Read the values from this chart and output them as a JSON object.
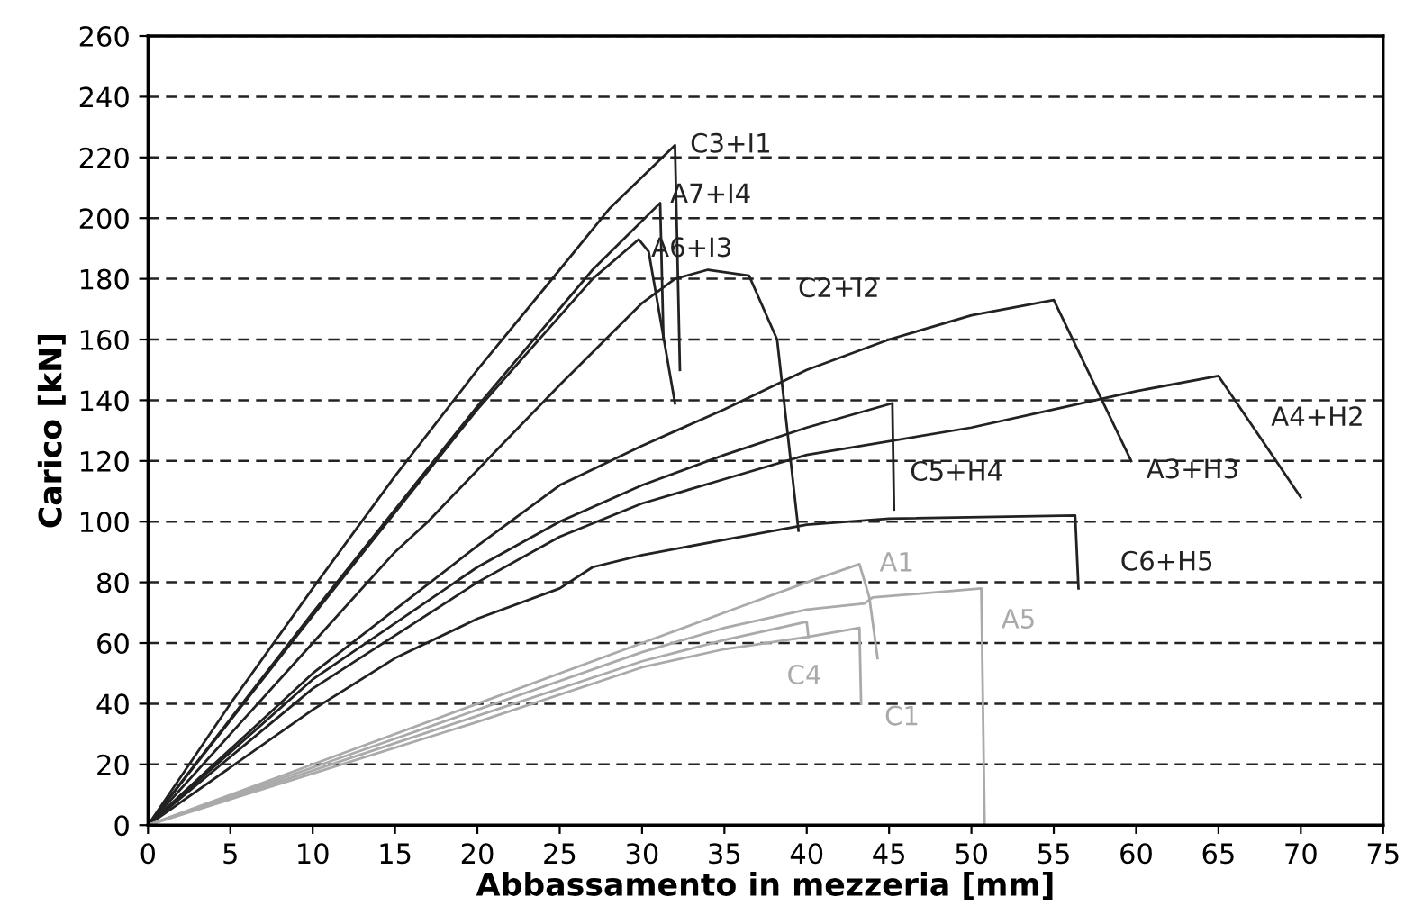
{
  "chart_data": {
    "type": "line",
    "xlabel": "Abbassamento in mezzeria [mm]",
    "ylabel": "Carico [kN]",
    "xlim": [
      0,
      75
    ],
    "xticks": [
      0,
      5,
      10,
      15,
      20,
      25,
      30,
      35,
      40,
      45,
      50,
      55,
      60,
      65,
      70,
      75
    ],
    "ylim": [
      0,
      260
    ],
    "yticks": [
      0,
      20,
      40,
      60,
      80,
      100,
      120,
      140,
      160,
      180,
      200,
      220,
      240,
      260
    ],
    "grid": "y",
    "legend": false,
    "marker": "none",
    "line_style": "solid",
    "series": [
      {
        "name": "C3+I1",
        "color": "#222222",
        "x": [
          0,
          5,
          10,
          15,
          20,
          25,
          28,
          32,
          32.3
        ],
        "values": [
          0,
          40,
          78,
          115,
          150,
          183,
          203,
          224,
          150
        ]
      },
      {
        "name": "A7+I4",
        "color": "#222222",
        "x": [
          0,
          10,
          20,
          27,
          31.1,
          31.3
        ],
        "values": [
          0,
          70,
          138,
          183,
          205,
          160
        ]
      },
      {
        "name": "A6+I3",
        "color": "#222222",
        "x": [
          0,
          10,
          20,
          27,
          29.8,
          30.4,
          32
        ],
        "values": [
          0,
          69,
          137,
          180,
          193,
          189,
          139
        ]
      },
      {
        "name": "C2+I2",
        "color": "#222222",
        "x": [
          0,
          5,
          10,
          15,
          17,
          20,
          25,
          30,
          32,
          34,
          36.5,
          38.2,
          39.5
        ],
        "values": [
          0,
          30,
          60,
          90,
          100,
          117,
          145,
          172,
          180,
          183,
          181,
          160,
          97
        ]
      },
      {
        "name": "A3+H3",
        "color": "#222222",
        "x": [
          0,
          10,
          20,
          25,
          30,
          35,
          40,
          45,
          50,
          55,
          59.7
        ],
        "values": [
          0,
          50,
          92,
          112,
          125,
          137,
          150,
          160,
          168,
          173,
          120
        ]
      },
      {
        "name": "A4+H2",
        "color": "#222222",
        "x": [
          0,
          10,
          20,
          25,
          30,
          35,
          40,
          50,
          55,
          60,
          65,
          70
        ],
        "values": [
          0,
          45,
          80,
          95,
          106,
          114,
          122,
          131,
          137,
          143,
          148,
          108
        ]
      },
      {
        "name": "C5+H4",
        "color": "#222222",
        "x": [
          0,
          10,
          20,
          25,
          30,
          35,
          40,
          45.2,
          45.3
        ],
        "values": [
          0,
          48,
          85,
          100,
          112,
          122,
          131,
          139,
          104
        ]
      },
      {
        "name": "C6+H5",
        "color": "#222222",
        "x": [
          0,
          10,
          15,
          20,
          25,
          27,
          30,
          35,
          40,
          45,
          56.3,
          56.5
        ],
        "values": [
          0,
          38,
          55,
          68,
          78,
          85,
          89,
          94,
          99,
          101,
          102,
          78
        ]
      },
      {
        "name": "A1",
        "color": "#aaaaaa",
        "x": [
          0,
          10,
          20,
          30,
          35,
          40,
          43.2,
          43.8,
          44.3
        ],
        "values": [
          0,
          20,
          40,
          60,
          70,
          80,
          86,
          75,
          55
        ]
      },
      {
        "name": "A5",
        "color": "#aaaaaa",
        "x": [
          0,
          10,
          20,
          30,
          35,
          40,
          43.5,
          44,
          50.6,
          50.8
        ],
        "values": [
          0,
          19,
          38,
          57,
          65,
          71,
          73,
          75,
          78,
          0
        ]
      },
      {
        "name": "C4",
        "color": "#aaaaaa",
        "x": [
          0,
          10,
          20,
          30,
          35,
          40,
          40.1
        ],
        "values": [
          0,
          18,
          36,
          54,
          61,
          67,
          62
        ]
      },
      {
        "name": "C1",
        "color": "#aaaaaa",
        "x": [
          0,
          10,
          20,
          30,
          35,
          40,
          43.2,
          43.3
        ],
        "values": [
          0,
          17,
          34,
          52,
          58,
          62,
          65,
          40
        ]
      }
    ]
  }
}
